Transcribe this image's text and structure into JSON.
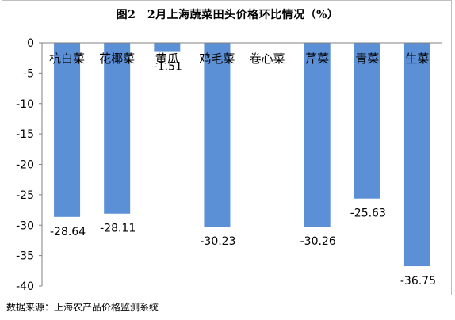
{
  "title": "图2　2月上海蔬菜田头价格环比情况（%）",
  "source": "数据来源：上海农产品价格监测系统",
  "colors": {
    "bar": "#5b8fd6",
    "axis": "#808080"
  },
  "chart_data": {
    "type": "bar",
    "title": "图2　2月上海蔬菜田头价格环比情况（%）",
    "xlabel": "",
    "ylabel": "",
    "categories": [
      "杭白菜",
      "花椰菜",
      "黄瓜",
      "鸡毛菜",
      "卷心菜",
      "芹菜",
      "青菜",
      "生菜"
    ],
    "values": [
      -28.64,
      -28.11,
      -1.51,
      -30.23,
      null,
      -30.26,
      -25.63,
      -36.75
    ],
    "data_labels": [
      "-28.64",
      "-28.11",
      "-1.51",
      "-30.23",
      "",
      "-30.26",
      "-25.63",
      "-36.75"
    ],
    "ylim": [
      -40,
      0
    ],
    "yticks": [
      0,
      -5,
      -10,
      -15,
      -20,
      -25,
      -30,
      -35,
      -40
    ],
    "grid": false,
    "legend": "none"
  }
}
